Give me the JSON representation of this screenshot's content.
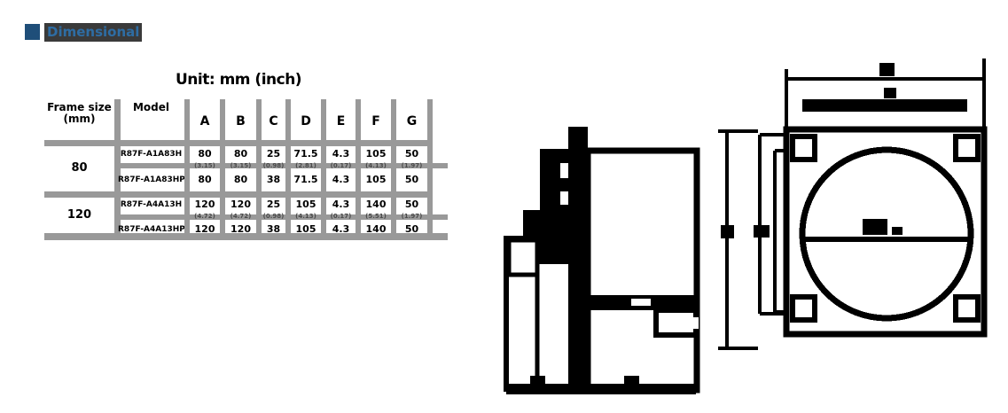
{
  "section": {
    "title": "Dimensional"
  },
  "colors": {
    "accent_blue": "#1F4E79",
    "title_bg": "#3A3A3A",
    "title_text": "#2E6DA4",
    "grid_gray": "#999999",
    "ink": "#000000"
  },
  "table": {
    "unit_label": "Unit: mm (inch)",
    "columns": [
      {
        "label": "Frame size",
        "label2": "(mm)"
      },
      {
        "label": "Model",
        "label2": ""
      },
      {
        "label": "A",
        "label2": ""
      },
      {
        "label": "B",
        "label2": ""
      },
      {
        "label": "C",
        "label2": ""
      },
      {
        "label": "D",
        "label2": ""
      },
      {
        "label": "E",
        "label2": ""
      },
      {
        "label": "F",
        "label2": ""
      },
      {
        "label": "G",
        "label2": ""
      }
    ],
    "groups": [
      {
        "frame": "80",
        "rows": [
          {
            "model": "R87F-A1A83H",
            "values": [
              "80",
              "80",
              "25",
              "71.5",
              "4.3",
              "105",
              "50"
            ]
          },
          {
            "model": "R87F-A1A83HP",
            "values": [
              "80",
              "80",
              "38",
              "71.5",
              "4.3",
              "105",
              "50"
            ]
          }
        ],
        "inch": {
          "model": "",
          "values": [
            "(3.15)",
            "(3.15)",
            "(0.98)",
            "(2.81)",
            "(0.17)",
            "(4.13)",
            "(1.97)"
          ]
        }
      },
      {
        "frame": "120",
        "rows": [
          {
            "model": "R87F-A4A13H",
            "values": [
              "120",
              "120",
              "25",
              "105",
              "4.3",
              "140",
              "50"
            ]
          },
          {
            "model": "R87F-A4A13HP",
            "values": [
              "120",
              "120",
              "38",
              "105",
              "4.3",
              "140",
              "50"
            ]
          }
        ],
        "inch": {
          "model": "",
          "values": [
            "(4.72)",
            "(4.72)",
            "(0.98)",
            "(4.13)",
            "(0.17)",
            "(5.51)",
            "(1.97)"
          ]
        }
      }
    ]
  }
}
